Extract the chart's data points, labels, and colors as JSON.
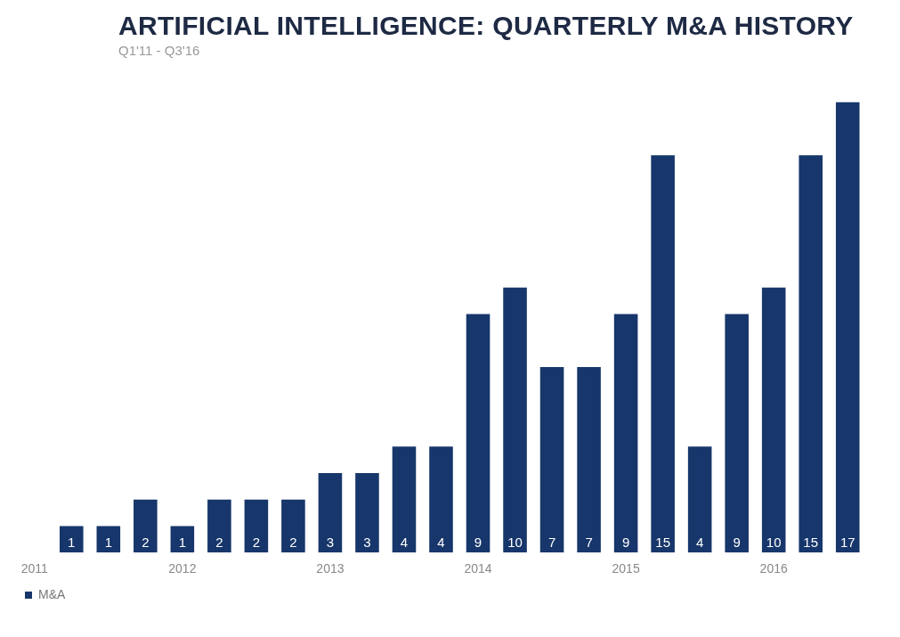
{
  "chart_data": {
    "type": "bar",
    "title": "ARTIFICIAL INTELLIGENCE: QUARTERLY M&A HISTORY",
    "subtitle": "Q1'11 - Q3'16",
    "categories": [
      "2011",
      null,
      null,
      null,
      "2012",
      null,
      null,
      null,
      "2013",
      null,
      null,
      null,
      "2014",
      null,
      null,
      null,
      "2015",
      null,
      null,
      null,
      "2016",
      null,
      null
    ],
    "series": [
      {
        "name": "M&A",
        "color": "#17366b",
        "values": [
          0,
          1,
          1,
          2,
          1,
          2,
          2,
          2,
          3,
          3,
          4,
          4,
          9,
          10,
          7,
          7,
          9,
          15,
          4,
          9,
          10,
          15,
          17
        ],
        "value_labels": [
          null,
          "1",
          "1",
          "2",
          "1",
          "2",
          "2",
          "2",
          "3",
          "3",
          "4",
          "4",
          "9",
          "10",
          "7",
          "7",
          "9",
          "15",
          "4",
          "9",
          "10",
          "15",
          "17"
        ]
      }
    ],
    "grid": false,
    "legend": "bottom left"
  }
}
